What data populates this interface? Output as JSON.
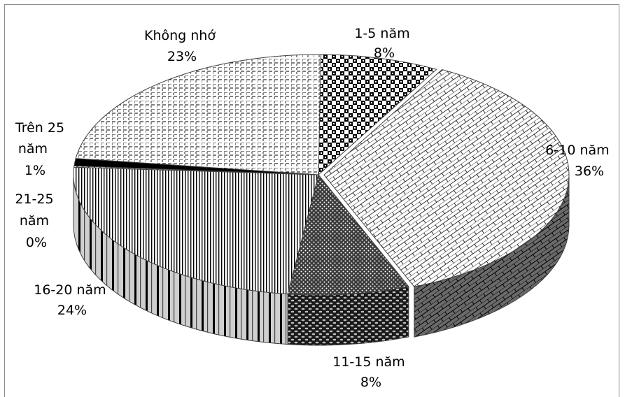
{
  "chart_data": {
    "type": "pie",
    "style": "3d-exploded-pie-patterned",
    "title": "",
    "legend": "none",
    "slices": [
      {
        "name": "1-5 năm",
        "value": 8,
        "label_name": "1-5 năm",
        "label_value": "8%",
        "pattern": "checker",
        "color": "#000000"
      },
      {
        "name": "6-10 năm",
        "value": 36,
        "label_name": "6-10 năm",
        "label_value": "36%",
        "pattern": "brick",
        "color": "#000000"
      },
      {
        "name": "11-15 năm",
        "value": 8,
        "label_name": "11-15 năm",
        "label_value": "8%",
        "pattern": "dots",
        "color": "#000000"
      },
      {
        "name": "16-20 năm",
        "value": 24,
        "label_name": "16-20 năm",
        "label_value": "24%",
        "pattern": "vertical",
        "color": "#000000"
      },
      {
        "name": "21-25 năm",
        "value": 0,
        "label_name": "21-25 năm",
        "label_value": "0%",
        "pattern": "diag",
        "color": "#000000"
      },
      {
        "name": "Trên 25 năm",
        "value": 1,
        "label_name": "Trên 25 năm",
        "label_value": "1%",
        "pattern": "solid",
        "color": "#000000"
      },
      {
        "name": "Không nhớ",
        "value": 23,
        "label_name": "Không nhớ",
        "label_value": "23%",
        "pattern": "dashgrid",
        "color": "#000000"
      }
    ]
  },
  "labels": {
    "s0": {
      "lines": [
        "1-5 năm",
        "8%"
      ]
    },
    "s1": {
      "lines": [
        "6-10 năm",
        "36%"
      ]
    },
    "s2": {
      "lines": [
        "11-15 năm",
        "8%"
      ]
    },
    "s3": {
      "lines": [
        "16-20 năm",
        "24%"
      ]
    },
    "s4": {
      "lines": [
        "21-25",
        "năm",
        "0%"
      ]
    },
    "s5": {
      "lines": [
        "Trên 25",
        "năm",
        "1%"
      ]
    },
    "s6": {
      "lines": [
        "Không nhớ",
        "23%"
      ]
    }
  }
}
